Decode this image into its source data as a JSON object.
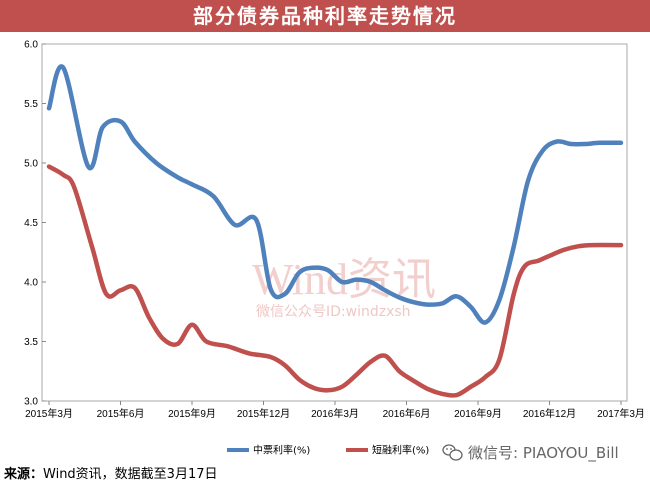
{
  "header": {
    "title": "部分债券品种利率走势情况"
  },
  "watermark": {
    "brand": "Wind资讯",
    "sub": "微信公众号ID:windzxsh"
  },
  "footer": {
    "source_label": "来源：",
    "source_text": "Wind资讯，数据截至3月17日"
  },
  "wechat_badge": {
    "text": "微信号: PIAOYOU_Bill",
    "icon": "wechat-icon"
  },
  "chart_data": {
    "type": "line",
    "categories": [
      "2015年3月",
      "2015年6月",
      "2015年9月",
      "2015年12月",
      "2016年3月",
      "2016年6月",
      "2016年9月",
      "2016年12月",
      "2017年3月"
    ],
    "ylim": [
      3.0,
      6.0
    ],
    "yticks": [
      "3.0",
      "3.5",
      "4.0",
      "4.5",
      "5.0",
      "5.5",
      "6.0"
    ],
    "grid": false,
    "legend_position": "bottom",
    "series": [
      {
        "name": "中票利率(%)",
        "color": "#4f81bd",
        "x": [
          0,
          0.2,
          0.55,
          0.75,
          1.0,
          1.2,
          1.5,
          1.8,
          2.0,
          2.3,
          2.6,
          2.9,
          3.1,
          3.3,
          3.5,
          3.7,
          3.9,
          4.1,
          4.3,
          4.5,
          4.7,
          4.9,
          5.1,
          5.3,
          5.5,
          5.7,
          5.9,
          6.1,
          6.3,
          6.5,
          6.7,
          6.9,
          7.1,
          7.3,
          7.5,
          7.7,
          8.0
        ],
        "values": [
          5.46,
          5.8,
          4.97,
          5.3,
          5.35,
          5.18,
          5.0,
          4.88,
          4.82,
          4.72,
          4.48,
          4.52,
          3.94,
          3.9,
          4.08,
          4.12,
          4.1,
          4.0,
          4.02,
          4.0,
          3.93,
          3.87,
          3.83,
          3.81,
          3.82,
          3.88,
          3.79,
          3.66,
          3.85,
          4.3,
          4.85,
          5.1,
          5.18,
          5.16,
          5.16,
          5.17,
          5.17
        ]
      },
      {
        "name": "短融利率(%)",
        "color": "#c0504d",
        "x": [
          0,
          0.2,
          0.35,
          0.6,
          0.8,
          1.0,
          1.2,
          1.4,
          1.6,
          1.8,
          2.0,
          2.2,
          2.5,
          2.8,
          3.1,
          3.3,
          3.5,
          3.7,
          3.9,
          4.1,
          4.3,
          4.5,
          4.7,
          4.9,
          5.1,
          5.3,
          5.5,
          5.7,
          5.9,
          6.1,
          6.3,
          6.5,
          6.65,
          6.85,
          7.0,
          7.2,
          7.4,
          7.6,
          8.0
        ],
        "values": [
          4.97,
          4.9,
          4.8,
          4.3,
          3.9,
          3.93,
          3.95,
          3.7,
          3.52,
          3.48,
          3.64,
          3.5,
          3.46,
          3.4,
          3.37,
          3.3,
          3.18,
          3.11,
          3.09,
          3.12,
          3.22,
          3.33,
          3.38,
          3.25,
          3.17,
          3.1,
          3.06,
          3.05,
          3.12,
          3.2,
          3.35,
          3.9,
          4.13,
          4.18,
          4.22,
          4.27,
          4.3,
          4.31,
          4.31
        ]
      }
    ]
  }
}
